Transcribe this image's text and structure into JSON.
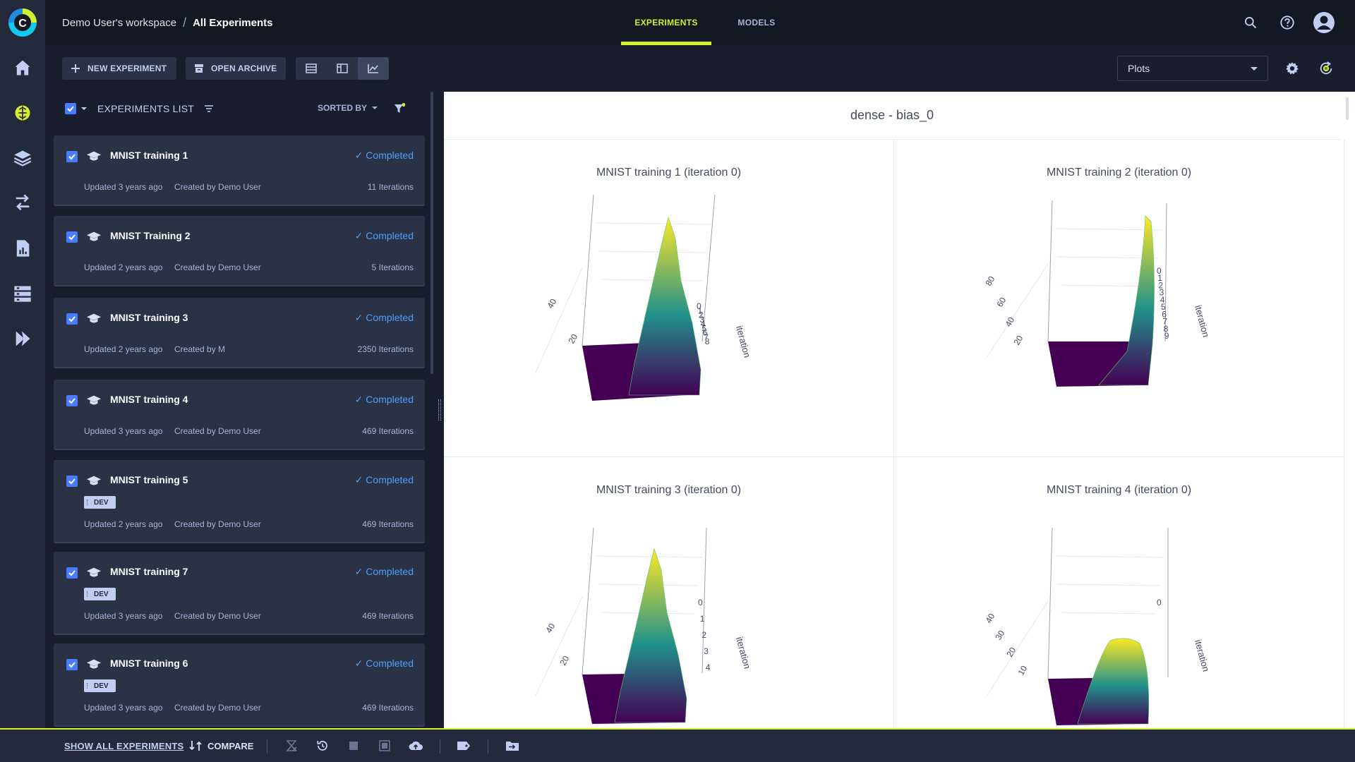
{
  "topbar": {
    "workspace": "Demo User's workspace",
    "separator": "/",
    "page": "All Experiments",
    "tabs": [
      {
        "label": "EXPERIMENTS",
        "active": true
      },
      {
        "label": "MODELS",
        "active": false
      }
    ],
    "icons": [
      "search-icon",
      "help-icon",
      "user-avatar-icon"
    ]
  },
  "sidebar": {
    "items": [
      "home-icon",
      "brain-icon",
      "layers-icon",
      "pipelines-icon",
      "reports-icon",
      "datasets-icon",
      "workers-icon"
    ],
    "active_item": "brain-icon"
  },
  "toolbar": {
    "new_experiment": "NEW EXPERIMENT",
    "open_archive": "OPEN ARCHIVE",
    "view_modes": [
      "table-view-icon",
      "details-view-icon",
      "compare-charts-icon"
    ],
    "active_view": "compare-charts-icon",
    "plot_select": "Plots"
  },
  "list": {
    "title": "EXPERIMENTS LIST",
    "sorted_by": "SORTED BY",
    "experiments": [
      {
        "name": "MNIST training 1",
        "status": "Completed",
        "updated": "Updated 3 years ago",
        "created": "Created by Demo User",
        "iterations": "11 Iterations",
        "tag": ""
      },
      {
        "name": "MNIST Training 2",
        "status": "Completed",
        "updated": "Updated 2 years ago",
        "created": "Created by Demo User",
        "iterations": "5 Iterations",
        "tag": ""
      },
      {
        "name": "MNIST training 3",
        "status": "Completed",
        "updated": "Updated 2 years ago",
        "created": "Created by M",
        "iterations": "2350 Iterations",
        "tag": ""
      },
      {
        "name": "MNIST training 4",
        "status": "Completed",
        "updated": "Updated 3 years ago",
        "created": "Created by Demo User",
        "iterations": "469 Iterations",
        "tag": ""
      },
      {
        "name": "MNIST training 5",
        "status": "Completed",
        "updated": "Updated 2 years ago",
        "created": "Created by Demo User",
        "iterations": "469 Iterations",
        "tag": "DEV"
      },
      {
        "name": "MNIST training 7",
        "status": "Completed",
        "updated": "Updated 3 years ago",
        "created": "Created by Demo User",
        "iterations": "469 Iterations",
        "tag": "DEV"
      },
      {
        "name": "MNIST training 6",
        "status": "Completed",
        "updated": "Updated 3 years ago",
        "created": "Created by Demo User",
        "iterations": "469 Iterations",
        "tag": "DEV"
      }
    ]
  },
  "plots": {
    "section_title": "dense - bias_0",
    "axis_label": "iteration",
    "charts": [
      {
        "title": "MNIST training 1 (iteration 0)",
        "iteration_ticks": [
          "0",
          "1",
          "2",
          "3",
          "4",
          "5",
          "6",
          "7",
          "8"
        ],
        "value_ticks": [
          "40",
          "20"
        ]
      },
      {
        "title": "MNIST training 2 (iteration 0)",
        "iteration_ticks": [
          "0",
          "1",
          "2",
          "3",
          "4",
          "5",
          "6",
          "7",
          "8",
          "9"
        ],
        "value_ticks": [
          "80",
          "60",
          "40",
          "20"
        ]
      },
      {
        "title": "MNIST training 3 (iteration 0)",
        "iteration_ticks": [
          "0",
          "1",
          "2",
          "3",
          "4"
        ],
        "value_ticks": [
          "40",
          "20"
        ]
      },
      {
        "title": "MNIST training 4 (iteration 0)",
        "iteration_ticks": [
          "0"
        ],
        "value_ticks": [
          "40",
          "30",
          "20",
          "10"
        ]
      }
    ],
    "colors": {
      "low": "#440154",
      "mid": "#21918c",
      "high": "#fde725"
    }
  },
  "bottombar": {
    "show_all": "SHOW ALL EXPERIMENTS",
    "compare": "COMPARE",
    "icons": [
      "abort-icon",
      "reset-icon",
      "stop-icon",
      "archive-icon",
      "publish-icon",
      "tag-icon",
      "move-to-project-icon"
    ]
  }
}
